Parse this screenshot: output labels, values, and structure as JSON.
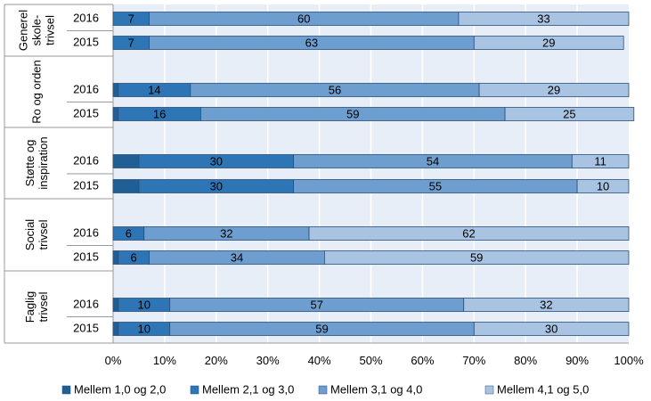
{
  "chart_data": {
    "type": "bar",
    "orientation": "horizontal",
    "stacked": "percent",
    "groups": [
      {
        "label_lines": [
          "Generel",
          "skole-",
          "trivsel"
        ],
        "years": [
          "2016",
          "2015"
        ]
      },
      {
        "label_lines": [
          "Ro og orden"
        ],
        "years": [
          "2016",
          "2015"
        ]
      },
      {
        "label_lines": [
          "Støtte og",
          "inspiration"
        ],
        "years": [
          "2016",
          "2015"
        ]
      },
      {
        "label_lines": [
          "Social",
          "trivsel"
        ],
        "years": [
          "2016",
          "2015"
        ]
      },
      {
        "label_lines": [
          "Faglig",
          "trivsel"
        ],
        "years": [
          "2016",
          "2015"
        ]
      }
    ],
    "series": [
      {
        "name": "Mellem 1,0 og 2,0",
        "color": "#1f5f95",
        "values": [
          [
            0,
            0
          ],
          [
            1,
            1
          ],
          [
            5,
            5
          ],
          [
            0,
            1
          ],
          [
            1,
            1
          ]
        ],
        "labels": [
          [
            "",
            ""
          ],
          [
            "",
            ""
          ],
          [
            "",
            ""
          ],
          [
            "",
            ""
          ],
          [
            "",
            ""
          ]
        ]
      },
      {
        "name": "Mellem 2,1 og 3,0",
        "color": "#2e75b6",
        "values": [
          [
            7,
            7
          ],
          [
            14,
            16
          ],
          [
            30,
            30
          ],
          [
            6,
            6
          ],
          [
            10,
            10
          ]
        ],
        "labels": [
          [
            "7",
            "7"
          ],
          [
            "14",
            "16"
          ],
          [
            "30",
            "30"
          ],
          [
            "6",
            "6"
          ],
          [
            "10",
            "10"
          ]
        ]
      },
      {
        "name": "Mellem 3,1 og 4,0",
        "color": "#6e9ed0",
        "values": [
          [
            60,
            63
          ],
          [
            56,
            59
          ],
          [
            54,
            55
          ],
          [
            32,
            34
          ],
          [
            57,
            59
          ]
        ],
        "labels": [
          [
            "60",
            "63"
          ],
          [
            "56",
            "59"
          ],
          [
            "54",
            "55"
          ],
          [
            "32",
            "34"
          ],
          [
            "57",
            "59"
          ]
        ]
      },
      {
        "name": "Mellem 4,1 og 5,0",
        "color": "#a9c3e2",
        "values": [
          [
            33,
            29
          ],
          [
            29,
            25
          ],
          [
            11,
            10
          ],
          [
            62,
            59
          ],
          [
            32,
            30
          ]
        ],
        "labels": [
          [
            "33",
            "29"
          ],
          [
            "29",
            "25"
          ],
          [
            "11",
            "10"
          ],
          [
            "62",
            "59"
          ],
          [
            "32",
            "30"
          ]
        ]
      }
    ],
    "x_ticks": [
      "0%",
      "10%",
      "20%",
      "30%",
      "40%",
      "50%",
      "60%",
      "70%",
      "80%",
      "90%",
      "100%"
    ],
    "xlim": [
      0,
      100
    ],
    "grid": true,
    "legend": "bottom",
    "colors": {
      "plot_background": "#e8eef7",
      "bar_border": "#2b4f78",
      "grid": "#ffffff"
    }
  }
}
